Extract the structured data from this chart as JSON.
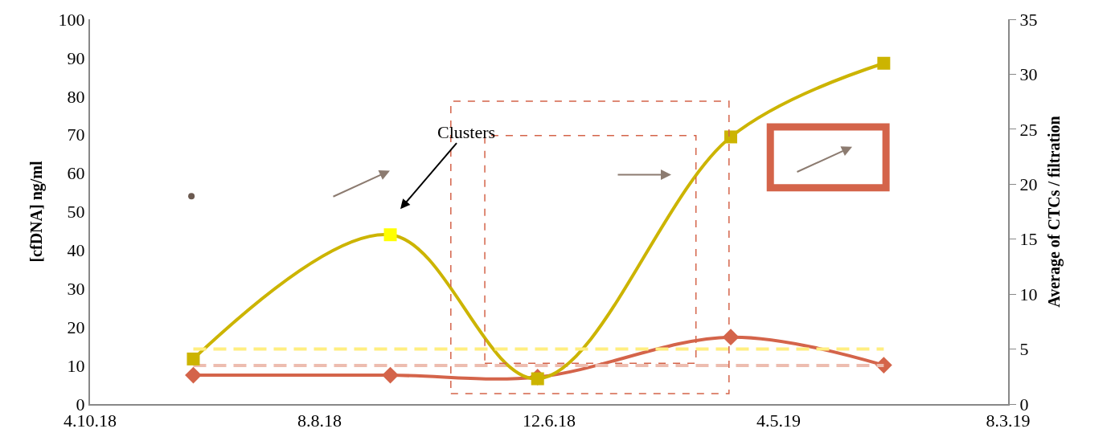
{
  "chart_data": {
    "type": "line",
    "xlabel": null,
    "ylabel": "[cfDNA] ng/ml",
    "y2label": "Average of CTCs / filtration",
    "x": [
      "2018-06-03",
      "2018-09-14",
      "2018-11-30",
      "2019-03-11",
      "2019-05-30"
    ],
    "xlim": [
      "2018-04-10",
      "2019-08-03"
    ],
    "xticks": [
      {
        "value": "2018-04-10",
        "label": "4.10.18"
      },
      {
        "value": "2018-08-08",
        "label": "8.8.18"
      },
      {
        "value": "2018-12-06",
        "label": "12.6.18"
      },
      {
        "value": "2019-04-05",
        "label": "4.5.19"
      },
      {
        "value": "2019-08-03",
        "label": "8.3.19"
      }
    ],
    "ylim": [
      0,
      100
    ],
    "yticks": [
      0,
      10,
      20,
      30,
      40,
      50,
      60,
      70,
      80,
      90,
      100
    ],
    "y2lim": [
      0,
      35
    ],
    "y2ticks": [
      0,
      5,
      10,
      15,
      20,
      25,
      30,
      35
    ],
    "series": [
      {
        "color": "#ccb400",
        "colors": [
          "#ccb400",
          "#ffff00",
          "#ccb400",
          "#ccb400",
          "#ccb400"
        ],
        "axis": "y2",
        "marker": "square",
        "values": [
          4.1,
          15.4,
          2.3,
          24.3,
          31.0
        ]
      },
      {
        "color": "#d4644a",
        "axis": "y",
        "marker": "diamond",
        "values": [
          7.5,
          7.5,
          7.0,
          17.4,
          10.1
        ]
      },
      {
        "color": "#ffee80",
        "axis": "y2",
        "marker": "none",
        "line_style": "dashed",
        "x": [
          "2018-06-03",
          "2019-05-30"
        ],
        "values": [
          5,
          5
        ]
      },
      {
        "color": "#edbdb0",
        "axis": "y",
        "marker": "none",
        "line_style": "dashed",
        "x": [
          "2018-06-03",
          "2019-05-30"
        ],
        "values": [
          10,
          10
        ]
      },
      {
        "type": "scatter",
        "color": "#6b5a50",
        "axis": "y",
        "marker": "circle",
        "x": [
          "2018-06-02"
        ],
        "values": [
          54
        ]
      }
    ],
    "annotations": [
      "Clusters"
    ]
  }
}
